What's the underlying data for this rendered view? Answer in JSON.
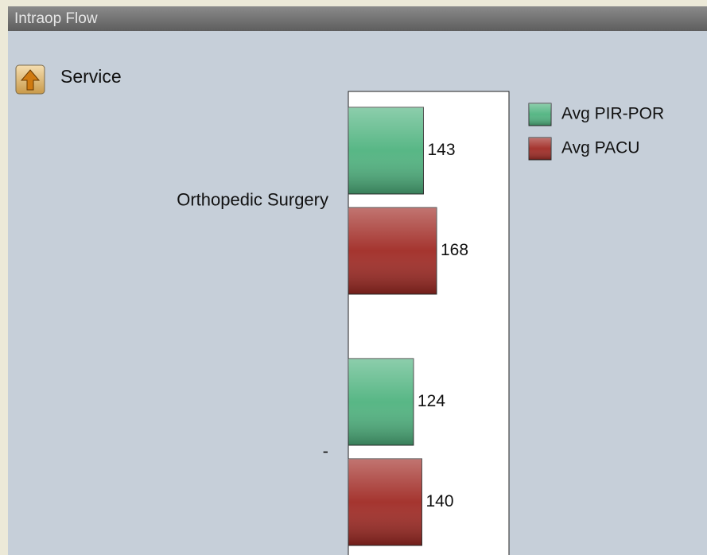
{
  "panel": {
    "title": "Intraop Flow",
    "breadcrumb": "Service"
  },
  "chart_data": {
    "type": "bar",
    "orientation": "horizontal",
    "categories": [
      "Orthopedic Surgery",
      "-"
    ],
    "series": [
      {
        "name": "Avg PIR-POR",
        "color": "#4fb37f",
        "values": [
          143,
          124
        ]
      },
      {
        "name": "Avg PACU",
        "color": "#a02a24",
        "values": [
          168,
          140
        ]
      }
    ],
    "legend": "top-right"
  }
}
